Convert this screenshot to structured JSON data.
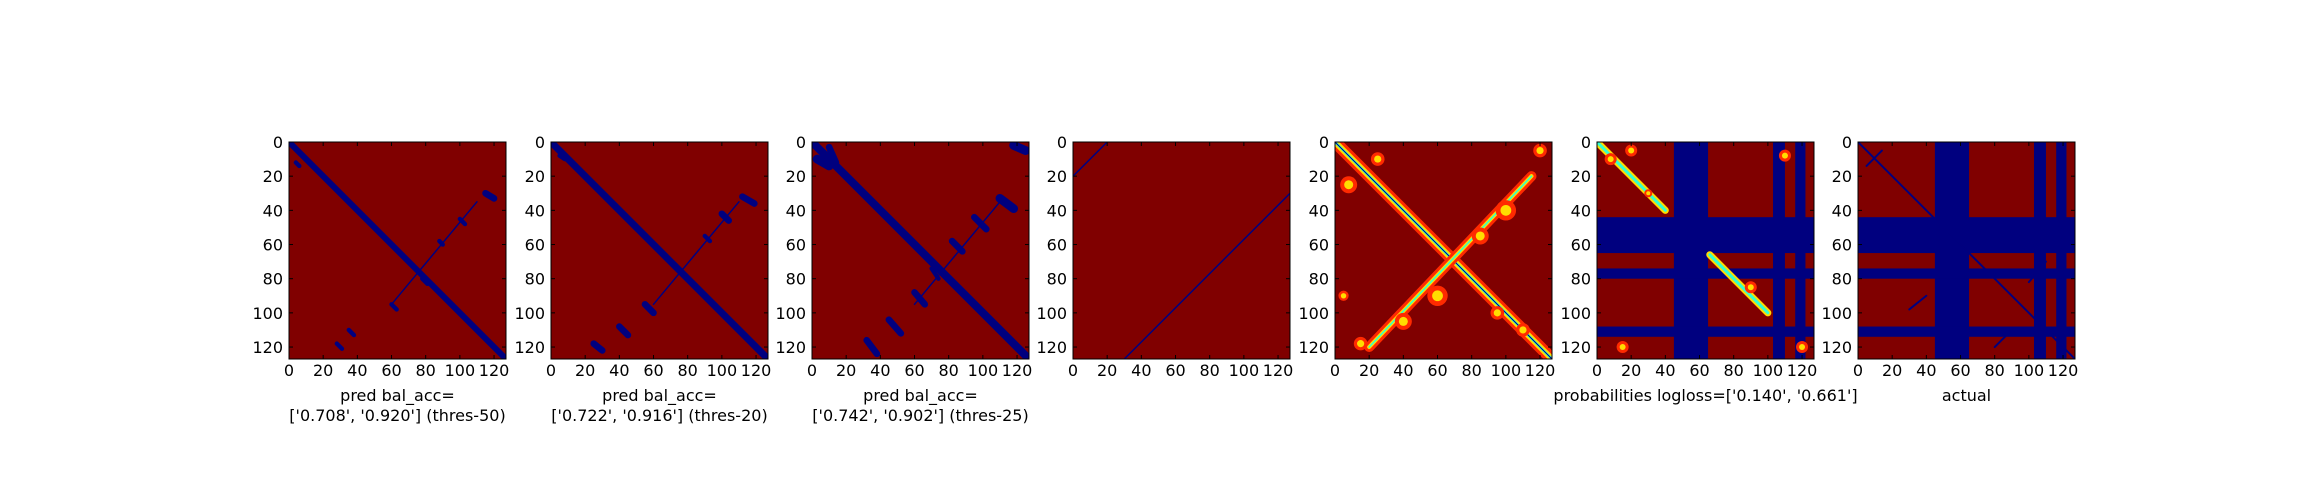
{
  "figure": {
    "background": "#ffffff",
    "colors": {
      "high": "#800000",
      "low": "#00007f",
      "mid_red": "#ff2a00",
      "mid_yellow": "#ffdd00",
      "mid_cyan": "#30ffd0"
    }
  },
  "chart_data": [
    {
      "type": "heatmap",
      "colormap": "jet",
      "x_ticks": [
        0,
        20,
        40,
        60,
        80,
        100,
        120
      ],
      "y_ticks": [
        0,
        20,
        40,
        60,
        80,
        100,
        120
      ],
      "xlim": [
        0,
        127
      ],
      "ylim": [
        127,
        0
      ],
      "caption": [
        "pred bal_acc=",
        "['0.708', '0.920'] (thres-50)"
      ]
    },
    {
      "type": "heatmap",
      "colormap": "jet",
      "x_ticks": [
        0,
        20,
        40,
        60,
        80,
        100,
        120
      ],
      "y_ticks": [
        0,
        20,
        40,
        60,
        80,
        100,
        120
      ],
      "xlim": [
        0,
        127
      ],
      "ylim": [
        127,
        0
      ],
      "caption": [
        "pred bal_acc=",
        "['0.722', '0.916'] (thres-20)"
      ]
    },
    {
      "type": "heatmap",
      "colormap": "jet",
      "x_ticks": [
        0,
        20,
        40,
        60,
        80,
        100,
        120
      ],
      "y_ticks": [
        0,
        20,
        40,
        60,
        80,
        100,
        120
      ],
      "xlim": [
        0,
        127
      ],
      "ylim": [
        127,
        0
      ],
      "caption": [
        "pred bal_acc=",
        "['0.742', '0.902'] (thres-25)"
      ]
    },
    {
      "type": "heatmap",
      "colormap": "jet",
      "x_ticks": [
        0,
        20,
        40,
        60,
        80,
        100,
        120
      ],
      "y_ticks": [
        0,
        20,
        40,
        60,
        80,
        100,
        120
      ],
      "xlim": [
        0,
        127
      ],
      "ylim": [
        127,
        0
      ],
      "caption": []
    },
    {
      "type": "heatmap",
      "colormap": "jet",
      "x_ticks": [
        0,
        20,
        40,
        60,
        80,
        100,
        120
      ],
      "y_ticks": [
        0,
        20,
        40,
        60,
        80,
        100,
        120
      ],
      "xlim": [
        0,
        127
      ],
      "ylim": [
        127,
        0
      ],
      "caption": []
    },
    {
      "type": "heatmap",
      "colormap": "jet",
      "x_ticks": [
        0,
        20,
        40,
        60,
        80,
        100,
        120
      ],
      "y_ticks": [
        0,
        20,
        40,
        60,
        80,
        100,
        120
      ],
      "xlim": [
        0,
        127
      ],
      "ylim": [
        127,
        0
      ],
      "caption": [
        "probabilities logloss=['0.140', '0.661']"
      ]
    },
    {
      "type": "heatmap",
      "colormap": "jet",
      "x_ticks": [
        0,
        20,
        40,
        60,
        80,
        100,
        120
      ],
      "y_ticks": [
        0,
        20,
        40,
        60,
        80,
        100,
        120
      ],
      "xlim": [
        0,
        127
      ],
      "ylim": [
        127,
        0
      ],
      "caption": [
        "actual"
      ]
    }
  ]
}
